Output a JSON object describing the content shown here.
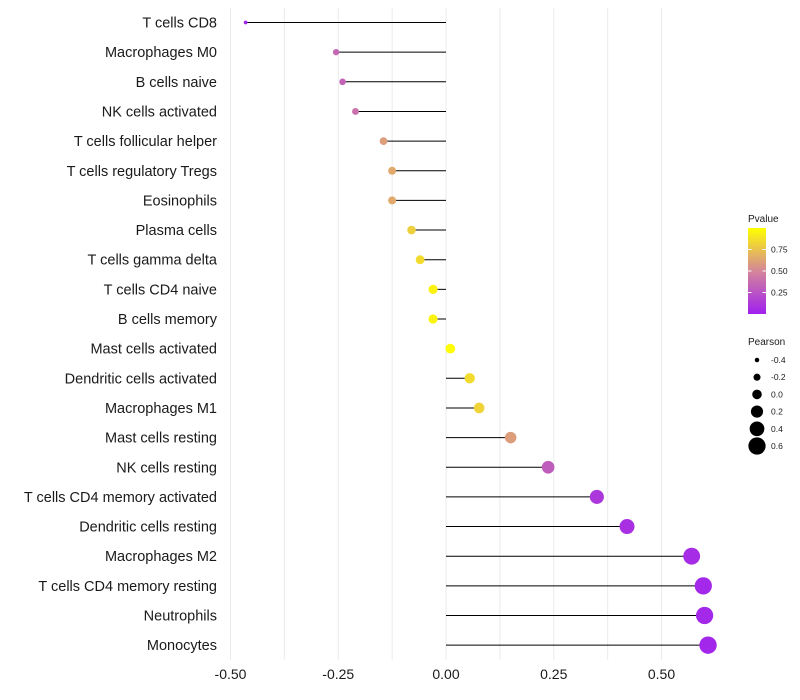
{
  "chart_data": {
    "type": "scatter",
    "subtype": "lollipop",
    "title": "",
    "xlabel": "",
    "ylabel": "",
    "xlim": [
      -0.5,
      0.65
    ],
    "x_ticks": [
      -0.5,
      -0.25,
      0.0,
      0.25,
      0.5
    ],
    "x_tick_labels": [
      "-0.50",
      "-0.25",
      "0.00",
      "0.25",
      "0.50"
    ],
    "grid": true,
    "categories": [
      "T cells CD8",
      "Macrophages M0",
      "B cells naive",
      "NK cells activated",
      "T cells follicular helper",
      "T cells regulatory  Tregs",
      "Eosinophils",
      "Plasma cells",
      "T cells gamma delta",
      "T cells CD4 naive",
      "B cells memory",
      "Mast cells activated",
      "Dendritic cells activated",
      "Macrophages M1",
      "Mast cells resting",
      "NK cells resting",
      "T cells CD4 memory activated",
      "Dendritic cells resting",
      "Macrophages M2",
      "T cells CD4 memory resting",
      "Neutrophils",
      "Monocytes"
    ],
    "pearson": [
      -0.465,
      -0.255,
      -0.24,
      -0.21,
      -0.145,
      -0.125,
      -0.125,
      -0.08,
      -0.06,
      -0.03,
      -0.03,
      0.01,
      0.055,
      0.077,
      0.15,
      0.237,
      0.35,
      0.42,
      0.57,
      0.597,
      0.6,
      0.608
    ],
    "pvalue": [
      0.02,
      0.35,
      0.33,
      0.4,
      0.6,
      0.65,
      0.65,
      0.8,
      0.85,
      0.95,
      0.95,
      0.99,
      0.85,
      0.82,
      0.6,
      0.3,
      0.12,
      0.08,
      0.06,
      0.04,
      0.04,
      0.03
    ],
    "legend": {
      "position": "right",
      "color": {
        "title": "Pvalue",
        "ticks": [
          0.25,
          0.5,
          0.75
        ],
        "tick_labels": [
          "0.25",
          "0.50",
          "0.75"
        ],
        "range": [
          0,
          1
        ],
        "low_color": "#a020f0",
        "mid_color": "#d4869a",
        "high_color": "#ffff00"
      },
      "size": {
        "title": "Pearson",
        "values": [
          -0.4,
          -0.2,
          0.0,
          0.2,
          0.4,
          0.6
        ],
        "labels": [
          "-0.4",
          "-0.2",
          "0.0",
          "0.2",
          "0.4",
          "0.6"
        ]
      }
    },
    "colors": {
      "stem": "#000000",
      "grid": "#ebebeb",
      "legend_key": "#000000"
    }
  }
}
